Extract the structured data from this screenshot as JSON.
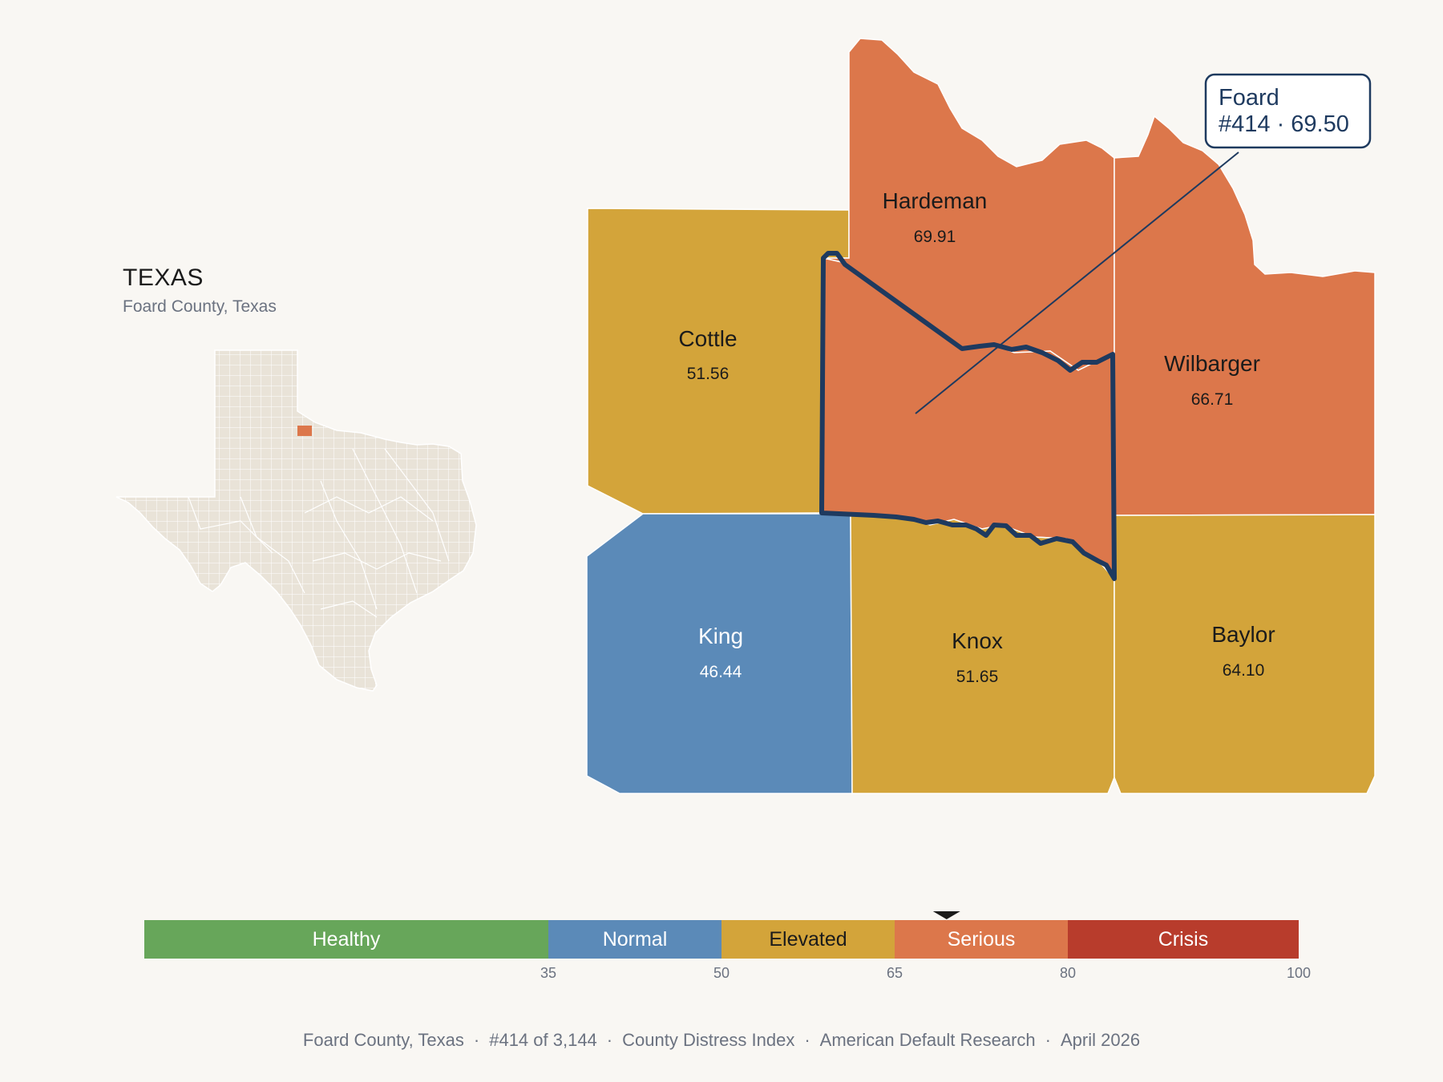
{
  "header": {
    "state_name": "TEXAS",
    "subtitle": "Foard County, Texas"
  },
  "colors": {
    "healthy": "#67a65a",
    "normal": "#5b8ab8",
    "elevated": "#d3a43a",
    "serious": "#dc774b",
    "crisis": "#b83c2c",
    "background": "#f9f7f3",
    "inset_fill": "#e9e3d8",
    "outline": "#1e3a5f"
  },
  "counties": [
    {
      "name": "Hardeman",
      "value": "69.91",
      "category": "serious"
    },
    {
      "name": "Cottle",
      "value": "51.56",
      "category": "elevated"
    },
    {
      "name": "Wilbarger",
      "value": "66.71",
      "category": "serious"
    },
    {
      "name": "King",
      "value": "46.44",
      "category": "normal"
    },
    {
      "name": "Knox",
      "value": "51.65",
      "category": "elevated"
    },
    {
      "name": "Baylor",
      "value": "64.10",
      "category": "elevated"
    },
    {
      "name": "Foard",
      "value": "69.50",
      "category": "serious",
      "highlighted": true
    }
  ],
  "callout": {
    "county": "Foard",
    "detail": "#414 · 69.50"
  },
  "legend": {
    "categories": [
      {
        "label": "Healthy",
        "from": 0,
        "to": 35,
        "color": "#67a65a"
      },
      {
        "label": "Normal",
        "from": 35,
        "to": 50,
        "color": "#5b8ab8"
      },
      {
        "label": "Elevated",
        "from": 50,
        "to": 65,
        "color": "#d3a43a"
      },
      {
        "label": "Serious",
        "from": 65,
        "to": 80,
        "color": "#dc774b"
      },
      {
        "label": "Crisis",
        "from": 80,
        "to": 100,
        "color": "#b83c2c"
      }
    ],
    "ticks": [
      "35",
      "50",
      "65",
      "80",
      "100"
    ],
    "marker_value": 69.5
  },
  "footer": {
    "county": "Foard County, Texas",
    "rank": "#414 of 3,144",
    "index": "County Distress Index",
    "source": "American Default Research",
    "date": "April 2026"
  }
}
